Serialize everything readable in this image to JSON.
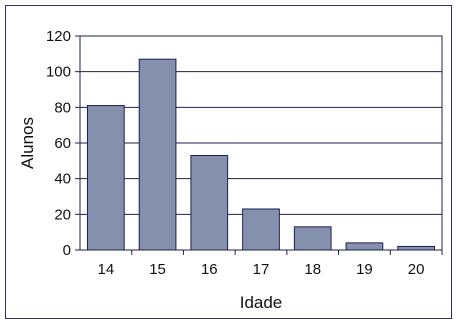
{
  "chart_data": {
    "type": "bar",
    "categories": [
      "14",
      "15",
      "16",
      "17",
      "18",
      "19",
      "20"
    ],
    "values": [
      81,
      107,
      53,
      23,
      13,
      4,
      2
    ],
    "xlabel": "Idade",
    "ylabel": "Alunos",
    "ylim": [
      0,
      120
    ],
    "yticks": [
      0,
      20,
      40,
      60,
      80,
      100,
      120
    ],
    "grid": true,
    "colors": {
      "bar_fill": "#8590ad",
      "bar_stroke": "#1d2150",
      "grid": "#1d2150",
      "frame": "#2b2f6b"
    }
  }
}
